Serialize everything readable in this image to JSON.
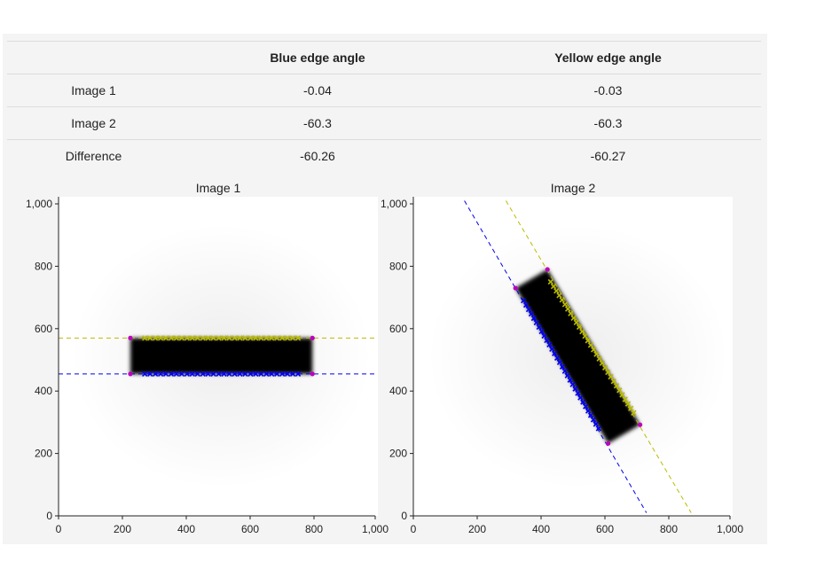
{
  "table": {
    "headers": [
      "",
      "Blue edge angle",
      "Yellow edge angle"
    ],
    "rows": [
      {
        "label": "Image 1",
        "blue": "-0.04",
        "yellow": "-0.03"
      },
      {
        "label": "Image 2",
        "blue": "-60.3",
        "yellow": "-60.3"
      },
      {
        "label": "Difference",
        "blue": "-60.26",
        "yellow": "-60.27"
      }
    ]
  },
  "colors": {
    "blue_edge": "#0000ee",
    "yellow_edge": "#bbbb00",
    "corner": "#bb00bb",
    "rect": "#000000"
  },
  "chart_data": [
    {
      "type": "scatter",
      "title": "Image 1",
      "xlim": [
        0,
        1000
      ],
      "ylim": [
        0,
        1000
      ],
      "x_ticks": [
        0,
        200,
        400,
        600,
        800,
        1000
      ],
      "y_ticks": [
        0,
        200,
        400,
        600,
        800,
        1000
      ],
      "tick_labels": [
        "0",
        "200",
        "400",
        "600",
        "800",
        "1,000"
      ],
      "rectangle": [
        [
          225,
          455
        ],
        [
          795,
          455
        ],
        [
          795,
          570
        ],
        [
          225,
          570
        ]
      ],
      "corners": [
        [
          225,
          455
        ],
        [
          795,
          455
        ],
        [
          795,
          570
        ],
        [
          225,
          570
        ]
      ],
      "blue_line": [
        [
          0,
          455
        ],
        [
          1000,
          455
        ]
      ],
      "yellow_line": [
        [
          0,
          570
        ],
        [
          1000,
          570
        ]
      ],
      "blue_points": {
        "from": [
          270,
          455
        ],
        "to": [
          750,
          455
        ],
        "count": 30
      },
      "yellow_points": {
        "from": [
          270,
          570
        ],
        "to": [
          750,
          570
        ],
        "count": 30
      }
    },
    {
      "type": "scatter",
      "title": "Image 2",
      "xlim": [
        0,
        1000
      ],
      "ylim": [
        0,
        1000
      ],
      "x_ticks": [
        0,
        200,
        400,
        600,
        800,
        1000
      ],
      "y_ticks": [
        0,
        200,
        400,
        600,
        800,
        1000
      ],
      "tick_labels": [
        "0",
        "200",
        "400",
        "600",
        "800",
        "1,000"
      ],
      "rectangle": [
        [
          320,
          730
        ],
        [
          420,
          790
        ],
        [
          710,
          292
        ],
        [
          610,
          232
        ]
      ],
      "corners": [
        [
          320,
          730
        ],
        [
          420,
          790
        ],
        [
          710,
          292
        ],
        [
          610,
          232
        ]
      ],
      "blue_line": [
        [
          160,
          1010
        ],
        [
          730,
          10
        ]
      ],
      "yellow_line": [
        [
          290,
          1010
        ],
        [
          870,
          10
        ]
      ],
      "blue_points": {
        "from": [
          345,
          690
        ],
        "to": [
          580,
          280
        ],
        "count": 30
      },
      "yellow_points": {
        "from": [
          430,
          750
        ],
        "to": [
          690,
          330
        ],
        "count": 30
      }
    }
  ]
}
